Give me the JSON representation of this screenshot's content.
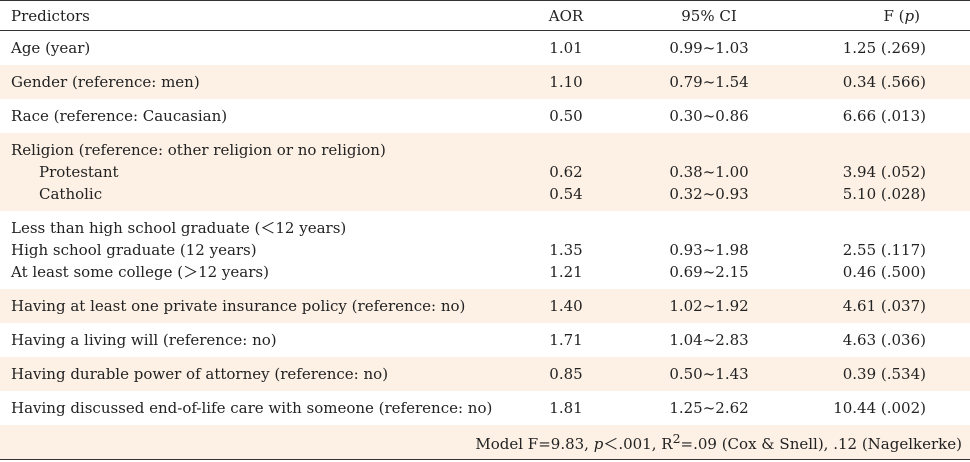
{
  "headers": {
    "predictors": "Predictors",
    "aor": "AOR",
    "ci": "95% CI",
    "f": "F (",
    "f_p": "p",
    "f_close": ")"
  },
  "rows": [
    {
      "label": "Age (year)",
      "aor": "1.01",
      "ci": "0.99~1.03",
      "f": "1.25 (.269)"
    },
    {
      "label": "Gender (reference: men)",
      "aor": "1.10",
      "ci": "0.79~1.54",
      "f": "0.34 (.566)"
    },
    {
      "label": "Race (reference: Caucasian)",
      "aor": "0.50",
      "ci": "0.30~0.86",
      "f": "6.66 (.013)"
    }
  ],
  "religion": {
    "label": "Religion (reference: other religion or no religion)",
    "items": [
      {
        "label": "Protestant",
        "aor": "0.62",
        "ci": "0.38~1.00",
        "f": "3.94 (.052)"
      },
      {
        "label": "Catholic",
        "aor": "0.54",
        "ci": "0.32~0.93",
        "f": "5.10 (.028)"
      }
    ]
  },
  "education": {
    "items": [
      {
        "label": "Less than high school graduate (＜12 years)",
        "aor": "",
        "ci": "",
        "f": ""
      },
      {
        "label": "High school graduate (12 years)",
        "aor": "1.35",
        "ci": "0.93~1.98",
        "f": "2.55 (.117)"
      },
      {
        "label": "At least some college (＞12 years)",
        "aor": "1.21",
        "ci": "0.69~2.15",
        "f": "0.46 (.500)"
      }
    ]
  },
  "rows2": [
    {
      "label": "Having at least one private insurance policy (reference: no)",
      "aor": "1.40",
      "ci": "1.02~1.92",
      "f": "4.61 (.037)"
    },
    {
      "label": "Having a living will (reference: no)",
      "aor": "1.71",
      "ci": "1.04~2.83",
      "f": "4.63 (.036)"
    },
    {
      "label": "Having durable power of attorney (reference: no)",
      "aor": "0.85",
      "ci": "0.50~1.43",
      "f": "0.39 (.534)"
    },
    {
      "label": "Having discussed end-of-life care with someone (reference: no)",
      "aor": "1.81",
      "ci": "1.25~2.62",
      "f": "10.44 (.002)"
    }
  ],
  "model": {
    "prefix": "Model  F=9.83, ",
    "p": "p",
    "p_value": "＜.001, ",
    "r2": "R",
    "sup": "2",
    "rest": "=.09 (Cox & Snell), .12 (Nagelkerke)"
  }
}
